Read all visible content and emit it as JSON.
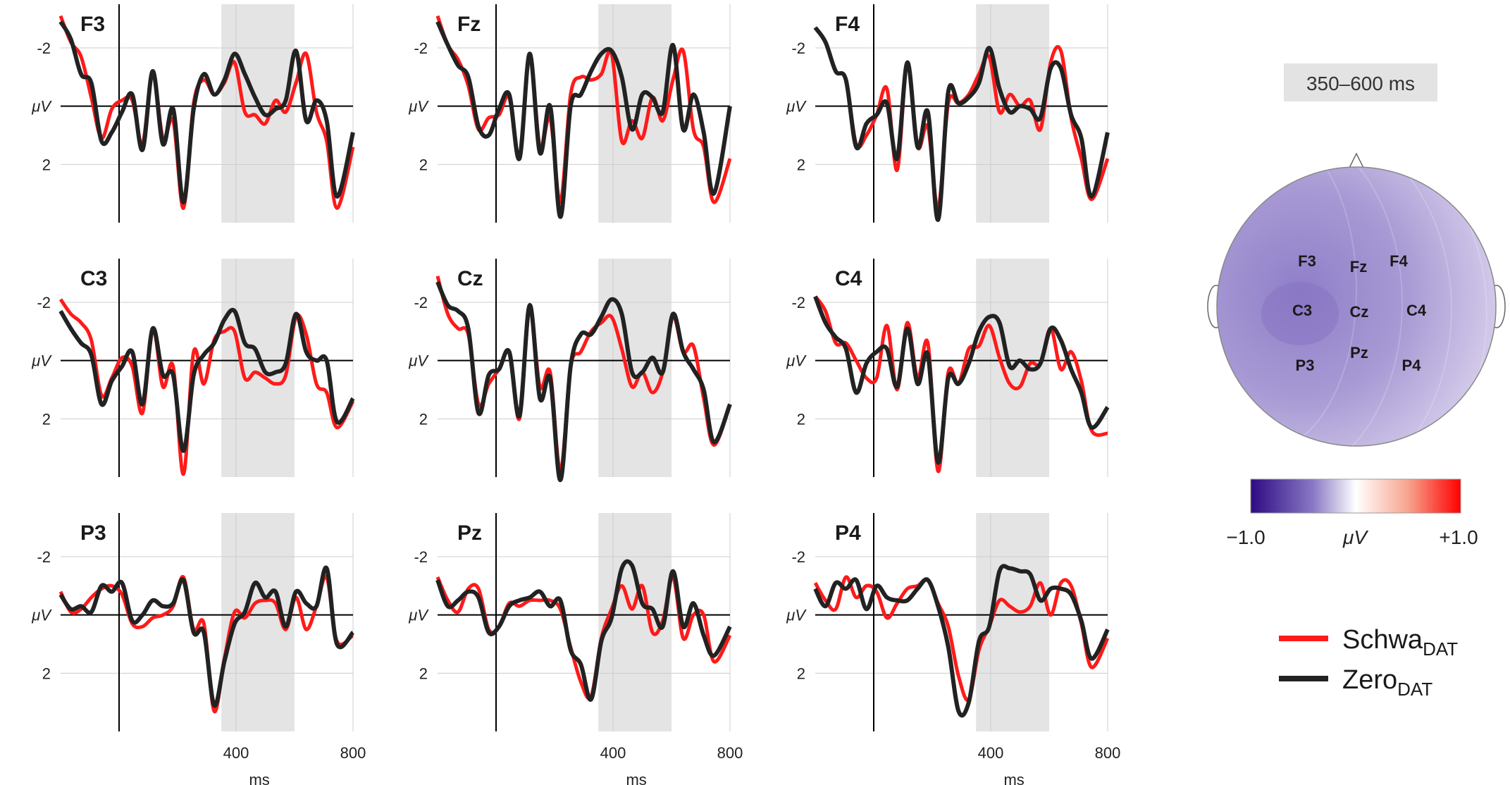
{
  "chart_data": {
    "type": "line",
    "panels": [
      {
        "title": "F3",
        "series": [
          {
            "name": "Schwa",
            "values": [
              -3.1,
              -2.2,
              -1.7,
              -0.3,
              1.1,
              0.1,
              -0.2,
              -0.2,
              1.3,
              -1.2,
              1.1,
              0.5,
              3.5,
              -0.1,
              -0.9,
              -0.4,
              -0.8,
              -1.5,
              0.2,
              0.3,
              0.6,
              -0.2,
              0.2,
              -0.8,
              -1.8,
              0.2,
              1.2,
              3.5,
              1.4
            ]
          },
          {
            "name": "Zero",
            "values": [
              -2.9,
              -2.3,
              -1.1,
              -0.8,
              1.2,
              0.9,
              0.2,
              -0.4,
              1.5,
              -1.2,
              1.3,
              0.1,
              3.3,
              0.1,
              -1.1,
              -0.4,
              -0.9,
              -1.8,
              -1.1,
              -0.3,
              0.3,
              0.1,
              -0.2,
              -1.9,
              0.5,
              -0.2,
              0.5,
              3.1,
              0.9
            ]
          }
        ]
      },
      {
        "title": "Fz",
        "series": [
          {
            "name": "Schwa",
            "values": [
              -3.1,
              -2.1,
              -1.6,
              -0.7,
              0.8,
              0.4,
              0.3,
              -0.3,
              1.8,
              -1.8,
              1.4,
              0.4,
              3.3,
              -0.4,
              -1.0,
              -0.9,
              -1.1,
              -1.8,
              1.2,
              0.5,
              1.1,
              -0.3,
              0.5,
              -0.9,
              -1.9,
              0.8,
              1.4,
              3.3,
              1.8
            ]
          },
          {
            "name": "Zero",
            "values": [
              -2.9,
              -2.1,
              -1.4,
              -1.0,
              0.7,
              1.0,
              0.1,
              -0.4,
              1.8,
              -1.8,
              1.6,
              -0.0,
              3.8,
              -0.0,
              -0.4,
              -1.2,
              -1.8,
              -1.9,
              -1.0,
              0.8,
              -0.4,
              -0.3,
              0.2,
              -2.1,
              0.8,
              -0.4,
              0.9,
              3.0,
              -0.0
            ]
          }
        ]
      },
      {
        "title": "F4",
        "series": [
          {
            "name": "Schwa",
            "values": [
              -2.7,
              -2.2,
              -1.2,
              -0.9,
              1.3,
              1.0,
              0.3,
              -0.6,
              2.2,
              -1.5,
              1.4,
              0.7,
              3.5,
              -0.1,
              -0.1,
              -0.4,
              -1.1,
              -1.7,
              0.2,
              -0.4,
              -0.0,
              -0.2,
              0.8,
              -1.5,
              -1.9,
              0.4,
              1.8,
              3.2,
              1.8
            ]
          },
          {
            "name": "Zero",
            "values": [
              -2.7,
              -2.2,
              -1.2,
              -0.9,
              1.4,
              0.6,
              0.3,
              -0.1,
              1.8,
              -1.5,
              1.4,
              0.2,
              3.9,
              -0.5,
              -0.1,
              -0.3,
              -0.8,
              -2.0,
              -0.6,
              0.2,
              -0.0,
              0.1,
              0.4,
              -1.3,
              -1.3,
              0.3,
              1.1,
              3.1,
              0.9
            ]
          }
        ]
      },
      {
        "title": "C3",
        "series": [
          {
            "name": "Schwa",
            "values": [
              -2.1,
              -1.6,
              -1.3,
              -0.7,
              1.2,
              0.6,
              -0.1,
              0.2,
              1.8,
              -1.1,
              0.9,
              0.2,
              3.9,
              -0.3,
              0.8,
              -0.7,
              -1.0,
              -1.0,
              0.6,
              0.4,
              0.6,
              0.8,
              0.5,
              -1.5,
              -0.9,
              0.8,
              1.1,
              2.3,
              1.4
            ]
          },
          {
            "name": "Zero",
            "values": [
              -1.7,
              -1.1,
              -0.6,
              -0.2,
              1.5,
              0.7,
              0.2,
              -0.3,
              1.5,
              -1.1,
              0.5,
              0.5,
              3.1,
              0.5,
              -0.2,
              -0.6,
              -1.4,
              -1.7,
              -0.6,
              -0.4,
              0.4,
              0.4,
              0.1,
              -1.6,
              -0.3,
              0.0,
              -0.0,
              2.1,
              1.3
            ]
          }
        ]
      },
      {
        "title": "Cz",
        "series": [
          {
            "name": "Schwa",
            "values": [
              -2.9,
              -1.6,
              -1.1,
              -0.9,
              1.5,
              0.8,
              0.3,
              -0.3,
              2.0,
              -1.8,
              0.9,
              0.4,
              3.8,
              0.2,
              -0.3,
              -1.0,
              -1.3,
              -1.5,
              -0.4,
              0.9,
              0.4,
              1.1,
              0.4,
              -1.5,
              -0.3,
              -0.5,
              1.3,
              2.9,
              1.5
            ]
          },
          {
            "name": "Zero",
            "values": [
              -2.7,
              -1.9,
              -1.7,
              -1.1,
              1.8,
              0.5,
              0.3,
              -0.3,
              1.9,
              -1.9,
              1.3,
              0.6,
              4.1,
              0.2,
              -0.9,
              -0.9,
              -1.5,
              -2.1,
              -1.6,
              0.4,
              0.4,
              -0.1,
              0.4,
              -1.6,
              -0.3,
              0.3,
              1.0,
              2.8,
              1.5
            ]
          }
        ]
      },
      {
        "title": "C4",
        "series": [
          {
            "name": "Schwa",
            "values": [
              -2.2,
              -1.7,
              -0.6,
              -0.6,
              0.0,
              0.6,
              0.6,
              -1.2,
              1.0,
              -1.3,
              0.6,
              -0.6,
              3.8,
              0.4,
              0.8,
              -0.4,
              -0.5,
              -1.2,
              -0.1,
              0.8,
              0.9,
              0.1,
              0.1,
              -1.1,
              0.3,
              -0.3,
              0.7,
              2.4,
              2.5
            ]
          },
          {
            "name": "Zero",
            "values": [
              -2.2,
              -1.3,
              -0.8,
              -0.4,
              1.1,
              0.1,
              -0.3,
              -0.4,
              0.9,
              -1.1,
              0.8,
              -0.2,
              3.5,
              0.6,
              0.8,
              0.1,
              -1.0,
              -1.5,
              -1.3,
              0.2,
              0.0,
              0.3,
              0.1,
              -1.1,
              -0.7,
              0.3,
              1.1,
              2.3,
              1.6
            ]
          }
        ]
      },
      {
        "title": "P3",
        "series": [
          {
            "name": "Schwa",
            "values": [
              -0.8,
              -0.1,
              -0.2,
              -0.6,
              -0.9,
              -1.0,
              -0.7,
              0.3,
              0.4,
              0.1,
              -0.0,
              -0.3,
              -1.3,
              0.5,
              0.3,
              3.3,
              1.5,
              -0.1,
              0.1,
              -0.4,
              -0.5,
              -0.4,
              0.5,
              -0.6,
              0.5,
              -0.3,
              -1.3,
              0.9,
              0.7
            ]
          },
          {
            "name": "Zero",
            "values": [
              -0.7,
              -0.2,
              -0.3,
              -0.1,
              -1.0,
              -0.8,
              -1.1,
              0.2,
              0.0,
              -0.5,
              -0.3,
              -0.4,
              -1.2,
              0.6,
              0.6,
              3.1,
              1.6,
              0.3,
              -0.1,
              -1.1,
              -0.6,
              -0.8,
              0.4,
              -0.8,
              -0.4,
              -0.3,
              -1.6,
              1.0,
              0.6
            ]
          }
        ]
      },
      {
        "title": "Pz",
        "series": [
          {
            "name": "Schwa",
            "values": [
              -1.3,
              -0.5,
              -0.1,
              -0.9,
              -0.9,
              0.5,
              0.4,
              -0.4,
              -0.3,
              -0.5,
              -0.5,
              -0.5,
              -0.2,
              1.1,
              2.3,
              2.8,
              0.8,
              -0.2,
              -1.0,
              -0.2,
              -1.0,
              0.6,
              0.2,
              -1.3,
              0.8,
              -0.0,
              0.0,
              1.6,
              0.7
            ]
          },
          {
            "name": "Zero",
            "values": [
              -1.2,
              -0.3,
              -0.5,
              -0.8,
              -0.6,
              0.6,
              0.4,
              -0.3,
              -0.5,
              -0.6,
              -0.8,
              -0.3,
              -0.5,
              1.2,
              1.7,
              2.9,
              0.9,
              0.1,
              -1.6,
              -1.7,
              -0.4,
              -0.2,
              0.4,
              -1.5,
              0.4,
              -0.4,
              0.7,
              1.4,
              0.4
            ]
          }
        ]
      },
      {
        "title": "P4",
        "series": [
          {
            "name": "Schwa",
            "values": [
              -1.1,
              -0.5,
              -0.2,
              -1.3,
              -0.6,
              -1.0,
              -0.8,
              0.1,
              -0.4,
              -0.9,
              -1.0,
              -1.2,
              -0.4,
              0.4,
              2.1,
              2.9,
              1.2,
              0.4,
              -0.5,
              -0.3,
              -0.1,
              -0.3,
              -1.1,
              0.0,
              -1.1,
              -1.0,
              0.3,
              1.8,
              0.8
            ]
          },
          {
            "name": "Zero",
            "values": [
              -0.9,
              -0.3,
              -1.1,
              -0.9,
              -1.2,
              -0.2,
              -1.0,
              -0.6,
              -0.5,
              -0.5,
              -0.9,
              -1.2,
              -0.3,
              1.1,
              3.3,
              3.0,
              0.9,
              0.4,
              -1.5,
              -1.6,
              -1.5,
              -1.4,
              -0.5,
              -0.9,
              -0.9,
              -0.7,
              0.2,
              1.5,
              0.5
            ]
          }
        ]
      }
    ],
    "x_ms": [
      -200,
      -165,
      -130,
      -95,
      -60,
      -25,
      10,
      45,
      80,
      115,
      150,
      185,
      220,
      255,
      290,
      325,
      360,
      395,
      430,
      465,
      500,
      535,
      570,
      605,
      640,
      675,
      710,
      745,
      800
    ],
    "xlim": [
      -200,
      800
    ],
    "ylim": [
      -3.5,
      4.0
    ],
    "y_ticks": [
      -2,
      2
    ],
    "x_ticks": [
      400,
      800
    ],
    "y_unit_label": "μV",
    "xlabel": "ms",
    "shaded_window": [
      350,
      600
    ],
    "grid": true,
    "series_colors": {
      "Schwa": "#ff1a1a",
      "Zero": "#222222"
    }
  },
  "topomap": {
    "window_label": "350–600 ms",
    "electrodes": [
      "F3",
      "Fz",
      "F4",
      "C3",
      "Cz",
      "C4",
      "P3",
      "Pz",
      "P4"
    ],
    "colorbar": {
      "min_label": "−1.0",
      "unit_label": "μV",
      "max_label": "+1.0",
      "colors": [
        "#3a0d8c",
        "#8a7ac5",
        "#ffffff",
        "#f4a08a",
        "#ff0000"
      ]
    }
  },
  "legend": {
    "items": [
      {
        "name": "Schwa",
        "sub": "DAT",
        "color": "#ff1a1a"
      },
      {
        "name": "Zero",
        "sub": "DAT",
        "color": "#222222"
      }
    ]
  }
}
